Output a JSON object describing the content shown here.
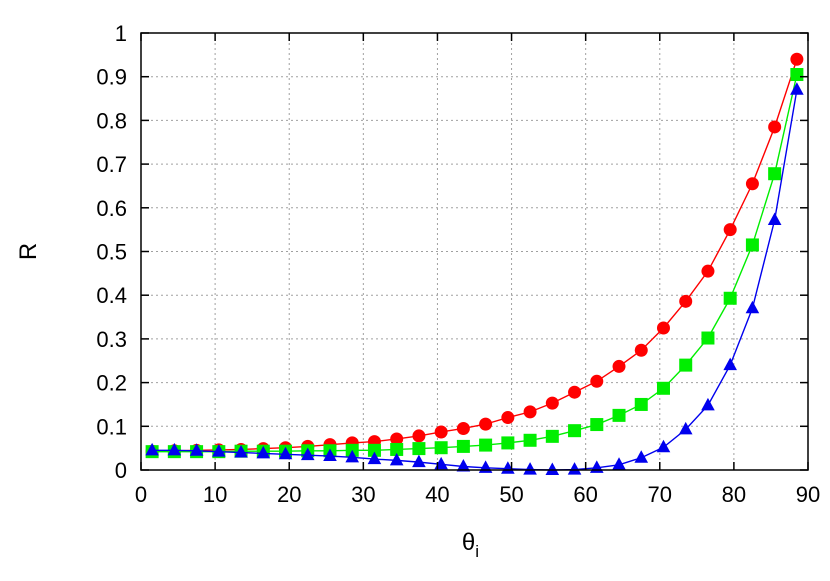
{
  "chart_data": {
    "type": "line",
    "title": "",
    "xlabel": "θ",
    "xlabel_subscript": "i",
    "ylabel": "R",
    "xlim": [
      0,
      90
    ],
    "ylim": [
      0,
      1
    ],
    "grid": true,
    "legend": "none",
    "xticks": [
      0,
      10,
      20,
      30,
      40,
      50,
      60,
      70,
      80,
      90
    ],
    "yticks": [
      0,
      0.1,
      0.2,
      0.3,
      0.4,
      0.5,
      0.6,
      0.7,
      0.8,
      0.9,
      1
    ],
    "xtick_labels": [
      "0",
      "10",
      "20",
      "30",
      "40",
      "50",
      "60",
      "70",
      "80",
      "90"
    ],
    "ytick_labels": [
      "0",
      "0.1",
      "0.2",
      "0.3",
      "0.4",
      "0.5",
      "0.6",
      "0.7",
      "0.8",
      "0.9",
      "1"
    ],
    "x": [
      1.5,
      4.5,
      7.5,
      10.5,
      13.5,
      16.5,
      19.5,
      22.5,
      25.5,
      28.5,
      31.5,
      34.5,
      37.5,
      40.5,
      43.5,
      46.5,
      49.5,
      52.5,
      55.5,
      58.5,
      61.5,
      64.5,
      67.5,
      70.5,
      73.5,
      76.5,
      79.5,
      82.5,
      85.5,
      88.5
    ],
    "series": [
      {
        "color": "#ff0000",
        "marker": "circle",
        "values": [
          0.043,
          0.044,
          0.045,
          0.046,
          0.047,
          0.049,
          0.051,
          0.054,
          0.058,
          0.062,
          0.065,
          0.071,
          0.078,
          0.087,
          0.095,
          0.105,
          0.12,
          0.133,
          0.153,
          0.178,
          0.203,
          0.237,
          0.274,
          0.325,
          0.386,
          0.455,
          0.55,
          0.655,
          0.785,
          0.94
        ]
      },
      {
        "color": "#00ee00",
        "marker": "square",
        "values": [
          0.042,
          0.042,
          0.042,
          0.042,
          0.043,
          0.043,
          0.043,
          0.044,
          0.044,
          0.045,
          0.045,
          0.047,
          0.049,
          0.051,
          0.054,
          0.057,
          0.062,
          0.068,
          0.077,
          0.09,
          0.104,
          0.125,
          0.15,
          0.187,
          0.24,
          0.302,
          0.393,
          0.515,
          0.678,
          0.905
        ]
      },
      {
        "color": "#0000ee",
        "marker": "triangle",
        "values": [
          0.045,
          0.045,
          0.044,
          0.042,
          0.04,
          0.038,
          0.036,
          0.034,
          0.032,
          0.029,
          0.025,
          0.022,
          0.018,
          0.013,
          0.008,
          0.005,
          0.003,
          0.001,
          0.0,
          0.001,
          0.005,
          0.012,
          0.028,
          0.052,
          0.093,
          0.148,
          0.24,
          0.37,
          0.572,
          0.87
        ]
      }
    ]
  }
}
